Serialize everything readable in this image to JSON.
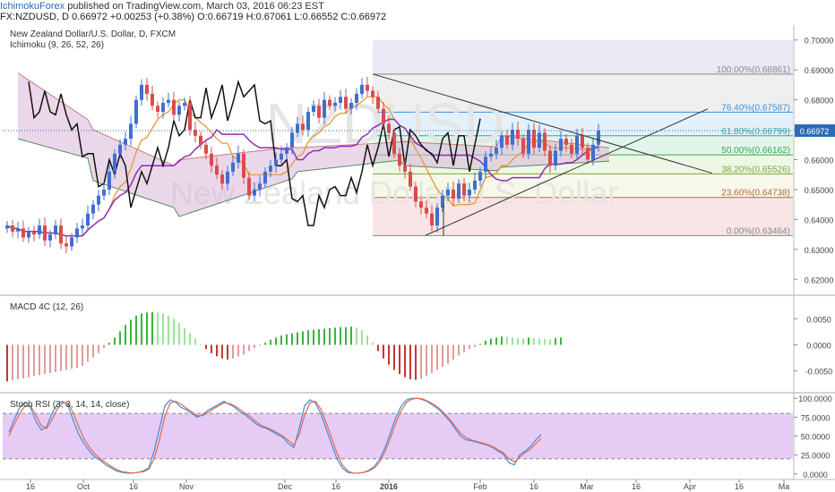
{
  "header": {
    "publisher": "IchimokuForex",
    "published_text": "published on TradingView.com, March 03, 2016 06:23 EST",
    "symbol_line_prefix": "FX:NZDUSD, D",
    "price": "0.66972",
    "change": "+0.00253 (+0.38%)",
    "open": "O:0.66719",
    "high": "H:0.67061",
    "low": "L:0.66552",
    "close": "C:0.66972"
  },
  "colors": {
    "accent": "#2a6db5",
    "candle_up": "#3f6fcf",
    "candle_down": "#d94c4c",
    "cloud": "#d9b8d9",
    "macd_up": "#44bb44",
    "macd_down": "#c0392b",
    "stoch_band": "#e6ccf5",
    "stoch_k": "#3a8fde",
    "stoch_d": "#e8684a"
  },
  "chart_data": [
    {
      "type": "candlestick",
      "title": "New Zealand Dollar/U.S. Dollar, D, FXCM",
      "indicator_label": "Ichimoku (9, 26, 52, 26)",
      "watermark_symbol": "NZDUSD",
      "watermark_text": "New Zealand Dollar/U.S. Dollar",
      "ylim": [
        0.615,
        0.705
      ],
      "y_ticks": [
        "0.70000",
        "0.69000",
        "0.68000",
        "0.67000",
        "0.66000",
        "0.65000",
        "0.64000",
        "0.63000",
        "0.62000"
      ],
      "y_tick_values": [
        0.7,
        0.69,
        0.68,
        0.67,
        0.66,
        0.65,
        0.64,
        0.63,
        0.62
      ],
      "last_price_label": "0.66972",
      "last_price": 0.66972,
      "fib_levels": [
        {
          "label": "100.00%(0.68861)",
          "value": 0.68861
        },
        {
          "label": "76.40%(0.67587)",
          "value": 0.67587
        },
        {
          "label": "61.80%(0.66799)",
          "value": 0.66799
        },
        {
          "label": "50.00%(0.66162)",
          "value": 0.66162
        },
        {
          "label": "38.20%(0.65526)",
          "value": 0.65526
        },
        {
          "label": "23.60%(0.64738)",
          "value": 0.64738
        },
        {
          "label": "0.00%(0.63464)",
          "value": 0.63464
        }
      ],
      "x_ticks": [
        "16",
        "Oct",
        "16",
        "Nov",
        "Dec",
        "16",
        "2016",
        "Feb",
        "16",
        "Mar",
        "16",
        "Apr",
        "16",
        "Ma"
      ],
      "closes": [
        0.638,
        0.636,
        0.637,
        0.634,
        0.636,
        0.635,
        0.638,
        0.633,
        0.635,
        0.638,
        0.632,
        0.631,
        0.634,
        0.637,
        0.638,
        0.642,
        0.645,
        0.648,
        0.65,
        0.656,
        0.662,
        0.665,
        0.667,
        0.672,
        0.68,
        0.685,
        0.682,
        0.678,
        0.676,
        0.679,
        0.68,
        0.675,
        0.678,
        0.679,
        0.67,
        0.668,
        0.665,
        0.662,
        0.658,
        0.655,
        0.652,
        0.656,
        0.659,
        0.662,
        0.654,
        0.648,
        0.65,
        0.652,
        0.656,
        0.658,
        0.66,
        0.662,
        0.664,
        0.669,
        0.672,
        0.67,
        0.676,
        0.678,
        0.674,
        0.68,
        0.678,
        0.679,
        0.681,
        0.677,
        0.679,
        0.682,
        0.685,
        0.683,
        0.681,
        0.677,
        0.672,
        0.669,
        0.662,
        0.658,
        0.656,
        0.651,
        0.646,
        0.644,
        0.642,
        0.638,
        0.644,
        0.648,
        0.65,
        0.647,
        0.652,
        0.648,
        0.65,
        0.653,
        0.656,
        0.661,
        0.662,
        0.664,
        0.668,
        0.665,
        0.67,
        0.667,
        0.662,
        0.67,
        0.664,
        0.669,
        0.663,
        0.658,
        0.663,
        0.667,
        0.665,
        0.662,
        0.668,
        0.664,
        0.66,
        0.665,
        0.6697
      ]
    },
    {
      "type": "bar",
      "title": "MACD 4C (12, 26)",
      "ylim": [
        -0.009,
        0.009
      ],
      "y_ticks": [
        "0.0050",
        "0.0000",
        "-0.0050"
      ],
      "y_tick_values": [
        0.005,
        0.0,
        -0.005
      ],
      "values": [
        -0.007,
        -0.0068,
        -0.0066,
        -0.0064,
        -0.0062,
        -0.006,
        -0.0058,
        -0.0056,
        -0.0054,
        -0.0052,
        -0.005,
        -0.0048,
        -0.0046,
        -0.0044,
        -0.004,
        -0.0032,
        -0.0024,
        -0.0016,
        -0.0006,
        0.0004,
        0.0014,
        0.0026,
        0.0038,
        0.0048,
        0.0056,
        0.006,
        0.0062,
        0.0063,
        0.0062,
        0.006,
        0.0056,
        0.005,
        0.0042,
        0.0032,
        0.0022,
        0.0012,
        0.0002,
        -0.0008,
        -0.0016,
        -0.0022,
        -0.0026,
        -0.0028,
        -0.0026,
        -0.0022,
        -0.0018,
        -0.0012,
        -0.0006,
        -0.0002,
        0.0004,
        0.001,
        0.0014,
        0.0018,
        0.002,
        0.0022,
        0.0024,
        0.0026,
        0.0028,
        0.0029,
        0.003,
        0.0031,
        0.0032,
        0.0033,
        0.0034,
        0.0034,
        0.0035,
        0.0033,
        0.0028,
        0.0018,
        0.0004,
        -0.0012,
        -0.0026,
        -0.0038,
        -0.0048,
        -0.0056,
        -0.0062,
        -0.0066,
        -0.0067,
        -0.0065,
        -0.006,
        -0.0054,
        -0.0048,
        -0.0042,
        -0.0036,
        -0.0028,
        -0.002,
        -0.0014,
        -0.0008,
        -0.0004,
        0.0002,
        0.0008,
        0.0012,
        0.0014,
        0.0016,
        0.0015,
        0.0014,
        0.0013,
        0.0012,
        0.0014,
        0.0013,
        0.0012,
        0.0011,
        0.001,
        0.0013,
        0.0014
      ]
    },
    {
      "type": "line",
      "title": "Stoch RSI (3, 3, 14, 14, close)",
      "ylim": [
        -5,
        105
      ],
      "band": [
        20,
        80
      ],
      "y_ticks": [
        "100.0000",
        "75.0000",
        "50.0000",
        "25.0000",
        "0.0000"
      ],
      "y_tick_values": [
        100,
        75,
        50,
        25,
        0
      ],
      "series": [
        {
          "values": [
            55,
            72,
            88,
            95,
            88,
            70,
            58,
            62,
            80,
            92,
            96,
            90,
            70,
            52,
            40,
            30,
            22,
            18,
            12,
            8,
            4,
            2,
            1,
            1,
            2,
            4,
            8,
            30,
            60,
            90,
            98,
            95,
            88,
            85,
            80,
            75,
            78,
            84,
            88,
            92,
            96,
            92,
            88,
            82,
            78,
            72,
            66,
            62,
            60,
            56,
            52,
            48,
            40,
            35,
            60,
            90,
            98,
            94,
            80,
            60,
            40,
            20,
            8,
            2,
            1,
            1,
            2,
            5,
            10,
            20,
            35,
            55,
            75,
            90,
            98,
            100,
            100,
            98,
            95,
            90,
            85,
            78,
            70,
            60,
            50,
            45,
            44,
            42,
            40,
            38,
            35,
            30,
            26,
            15,
            12,
            25,
            30,
            36,
            45,
            52
          ]
        },
        {
          "values": [
            50,
            66,
            80,
            90,
            90,
            78,
            64,
            60,
            72,
            86,
            94,
            93,
            80,
            62,
            46,
            35,
            26,
            20,
            15,
            10,
            6,
            3,
            2,
            1,
            2,
            3,
            6,
            20,
            45,
            76,
            94,
            96,
            92,
            87,
            82,
            77,
            77,
            81,
            86,
            90,
            94,
            93,
            90,
            85,
            80,
            75,
            69,
            64,
            61,
            58,
            54,
            50,
            44,
            38,
            52,
            78,
            94,
            96,
            86,
            68,
            48,
            28,
            12,
            4,
            1,
            1,
            2,
            4,
            8,
            16,
            30,
            48,
            68,
            84,
            95,
            99,
            100,
            99,
            96,
            92,
            87,
            80,
            72,
            63,
            54,
            48,
            45,
            43,
            41,
            39,
            36,
            32,
            28,
            20,
            16,
            22,
            28,
            33,
            40,
            47
          ]
        }
      ]
    }
  ]
}
